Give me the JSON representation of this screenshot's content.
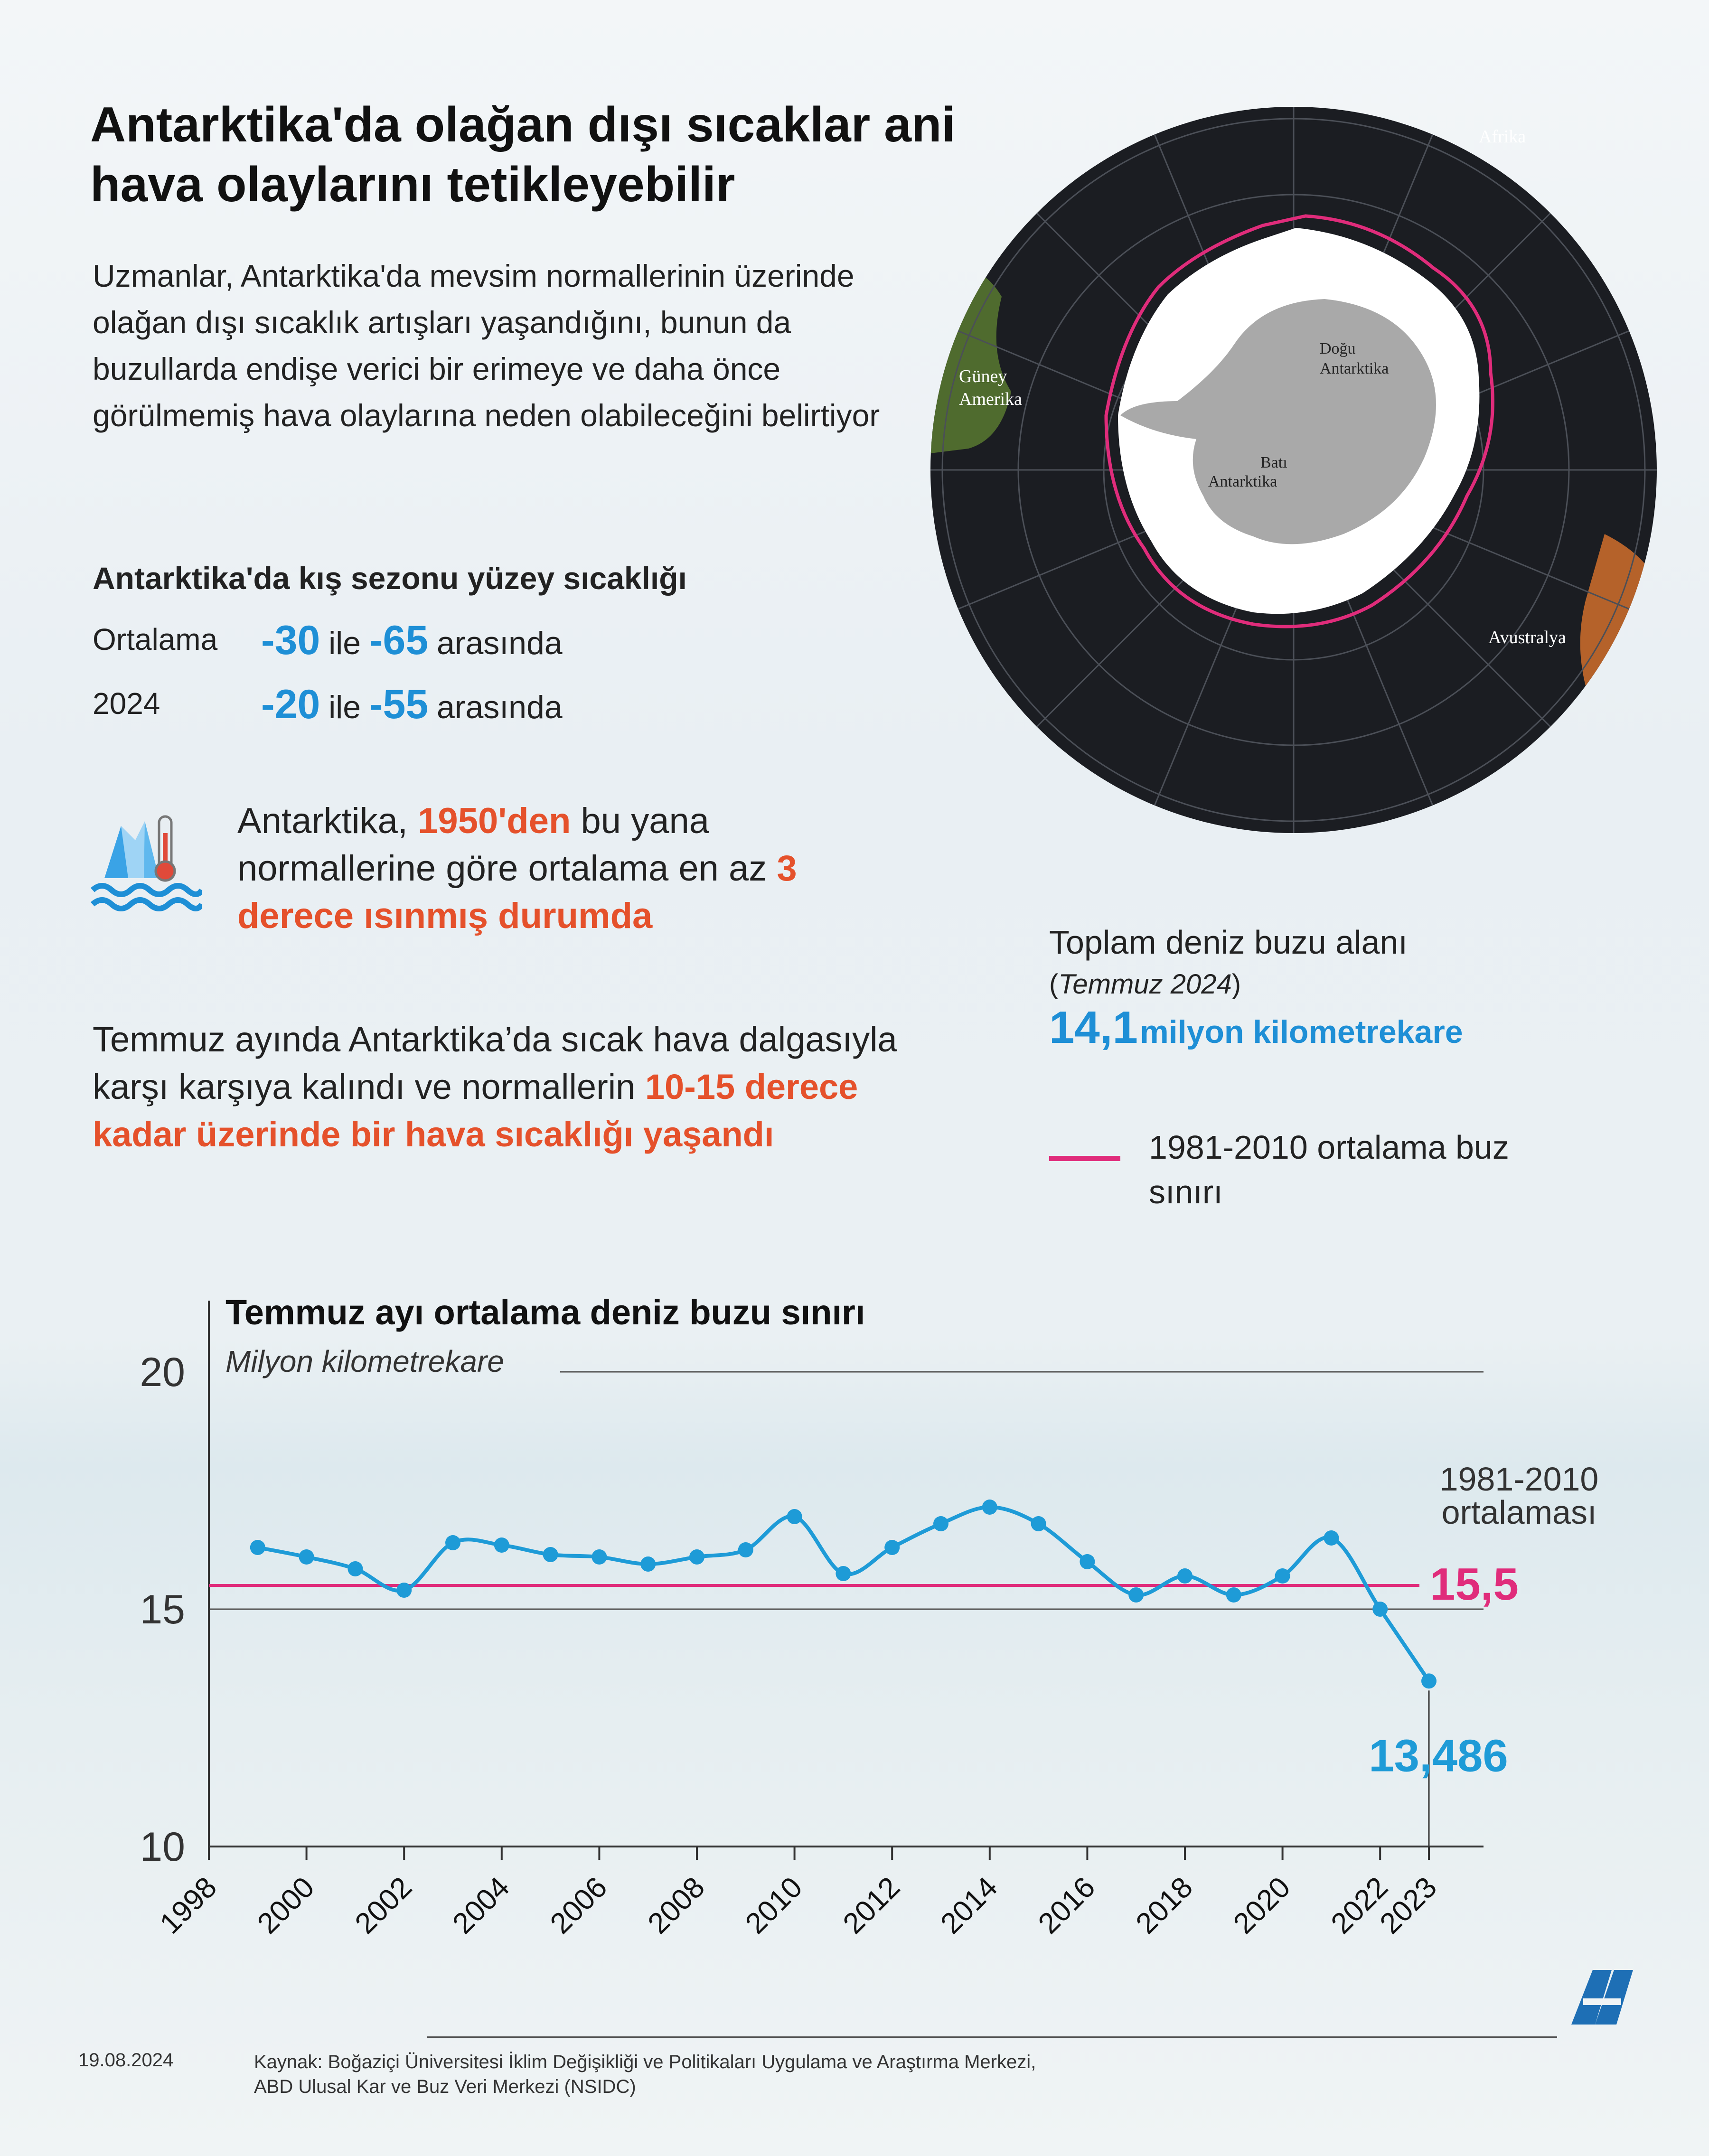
{
  "header": {
    "title": "Antarktika'da olağan dışı sıcaklar ani hava olaylarını tetikleyebilir",
    "intro": "Uzmanlar, Antarktika'da mevsim normallerinin üzerinde olağan dışı sıcaklık artışları yaşandığını, bunun da buzullarda endişe verici bir erimeye ve daha önce görülmemiş hava olaylarına neden olabileceğini belirtiyor"
  },
  "winter_temp": {
    "title": "Antarktika'da kış sezonu yüzey sıcaklığı",
    "rows": [
      {
        "label": "Ortalama",
        "low": "-30",
        "mid": "ile",
        "high": "-65",
        "suffix": "arasında"
      },
      {
        "label": "2024",
        "low": "-20",
        "mid": "ile",
        "high": "-55",
        "suffix": "arasında"
      }
    ]
  },
  "warming": {
    "part1": "Antarktika, ",
    "hl1": "1950'den",
    "part2": " bu yana normallerine göre ortalama en az ",
    "hl2": "3 derece ısınmış durumda"
  },
  "heatwave": {
    "part1": "Temmuz ayında Antarktika’da sıcak hava dalgasıyla karşı karşıya kalındı ve normallerin ",
    "hl": "10-15 derece kadar üzerinde bir hava sıcaklığı yaşandı"
  },
  "map": {
    "labels": {
      "africa": "Afrika",
      "south_america_1": "Güney",
      "south_america_2": "Amerika",
      "east_1": "Doğu",
      "east_2": "Antarktika",
      "west_1": "Batı",
      "west_2": "Antarktika",
      "australia": "Avustralya"
    },
    "colors": {
      "ocean": "#1b1d22",
      "ice": "#ffffff",
      "land": "#a9a9a9",
      "boundary": "#e02c7b"
    }
  },
  "sea_ice": {
    "title": "Toplam deniz buzu alanı",
    "date_open": "(",
    "date": "Temmuz 2024",
    "date_close": ")",
    "value": "14,1",
    "unit": "milyon kilometrekare",
    "legend": "1981-2010 ortalama buz sınırı"
  },
  "chart_data": {
    "type": "line",
    "title": "Temmuz ayı ortalama deniz buzu sınırı",
    "ylabel": "Milyon kilometrekare",
    "ylim": [
      10,
      20
    ],
    "yticks": [
      "10",
      "15",
      "20"
    ],
    "xticks": [
      "1998",
      "2000",
      "2002",
      "2004",
      "2006",
      "2008",
      "2010",
      "2012",
      "2014",
      "2016",
      "2018",
      "2020",
      "2022",
      "2023"
    ],
    "x": [
      1999,
      2000,
      2001,
      2002,
      2003,
      2004,
      2005,
      2006,
      2007,
      2008,
      2009,
      2010,
      2011,
      2012,
      2013,
      2014,
      2015,
      2016,
      2017,
      2018,
      2019,
      2020,
      2021,
      2022,
      2023
    ],
    "values": [
      16.3,
      16.1,
      15.85,
      15.4,
      16.4,
      16.35,
      16.15,
      16.1,
      15.95,
      16.1,
      16.25,
      16.95,
      15.75,
      16.3,
      16.8,
      17.15,
      16.8,
      16.0,
      15.3,
      15.7,
      15.3,
      15.7,
      16.5,
      15.0,
      13.486
    ],
    "reference": {
      "label_line1": "1981-2010",
      "label_line2": "ortalaması",
      "value": 15.5,
      "value_label": "15,5"
    },
    "last_value_label": "13,486",
    "colors": {
      "line": "#1e9bd7",
      "reference": "#e02c7b",
      "axis": "#333333"
    }
  },
  "footer": {
    "date": "19.08.2024",
    "source_line1": "Kaynak: Boğaziçi Üniversitesi İklim Değişikliği ve Politikaları Uygulama ve Araştırma Merkezi,",
    "source_line2": "ABD Ulusal Kar ve Buz Veri Merkezi (NSIDC)"
  }
}
